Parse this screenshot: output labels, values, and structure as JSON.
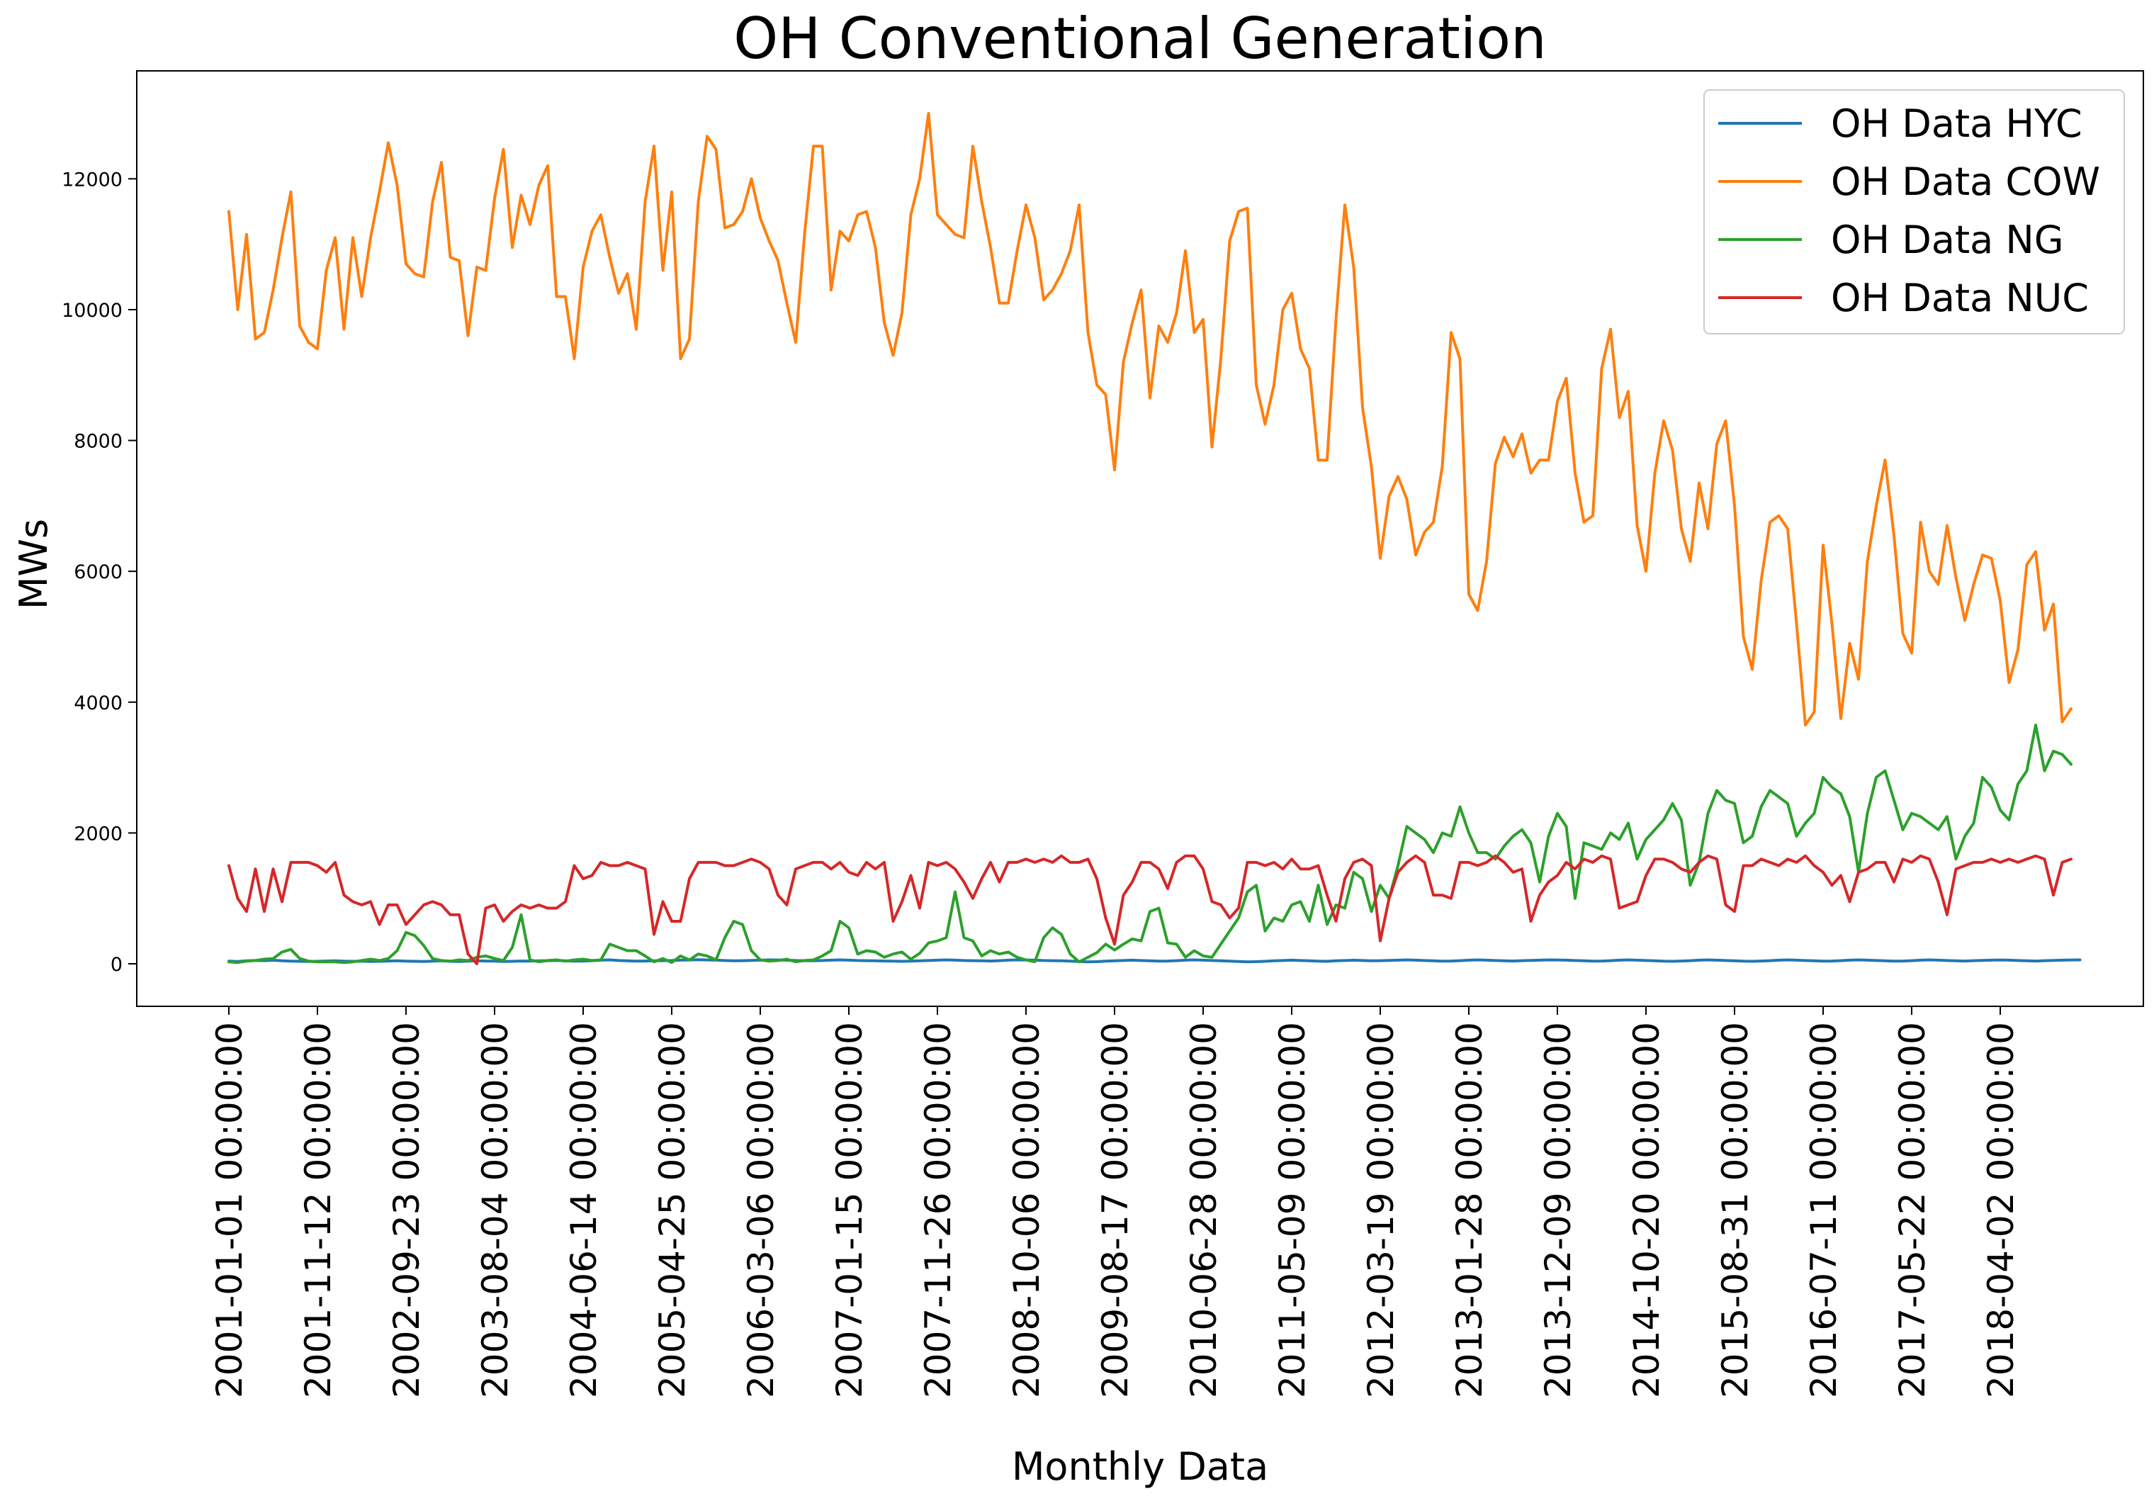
{
  "chart_data": {
    "type": "line",
    "title": "OH Conventional Generation",
    "xlabel": "Monthly Data",
    "ylabel": "MWs",
    "x_start": "2001-01",
    "x_interval": "monthly",
    "x_count": 210,
    "x_tick_labels": [
      "2001-01-01 00:00:00",
      "2001-11-12 00:00:00",
      "2002-09-23 00:00:00",
      "2003-08-04 00:00:00",
      "2004-06-14 00:00:00",
      "2005-04-25 00:00:00",
      "2006-03-06 00:00:00",
      "2007-01-15 00:00:00",
      "2007-11-26 00:00:00",
      "2008-10-06 00:00:00",
      "2009-08-17 00:00:00",
      "2010-06-28 00:00:00",
      "2011-05-09 00:00:00",
      "2012-03-19 00:00:00",
      "2013-01-28 00:00:00",
      "2013-12-09 00:00:00",
      "2014-10-20 00:00:00",
      "2015-08-31 00:00:00",
      "2016-07-11 00:00:00",
      "2017-05-22 00:00:00",
      "2018-04-02 00:00:00"
    ],
    "yticks": [
      0,
      2000,
      4000,
      6000,
      8000,
      10000,
      12000
    ],
    "ylim": [
      -650,
      13650
    ],
    "grid": false,
    "legend_position": "top-right",
    "series": [
      {
        "name": "OH Data HYC",
        "color": "#1f77b4",
        "values": [
          40,
          35,
          45,
          50,
          48,
          55,
          45,
          40,
          38,
          35,
          38,
          42,
          45,
          40,
          38,
          40,
          35,
          38,
          42,
          45,
          40,
          38,
          35,
          40,
          45,
          38,
          35,
          40,
          45,
          42,
          40,
          35,
          38,
          42,
          40,
          45,
          48,
          50,
          45,
          40,
          42,
          48,
          55,
          60,
          50,
          45,
          40,
          42,
          45,
          48,
          50,
          55,
          58,
          62,
          58,
          55,
          50,
          45,
          48,
          52,
          55,
          60,
          58,
          55,
          50,
          48,
          45,
          50,
          55,
          60,
          55,
          50,
          48,
          45,
          42,
          40,
          38,
          40,
          45,
          50,
          55,
          60,
          55,
          50,
          48,
          45,
          42,
          48,
          55,
          60,
          58,
          55,
          50,
          48,
          45,
          40,
          35,
          30,
          32,
          40,
          45,
          50,
          55,
          50,
          45,
          40,
          42,
          48,
          55,
          60,
          55,
          50,
          45,
          40,
          35,
          30,
          32,
          38,
          45,
          50,
          55,
          50,
          45,
          40,
          38,
          45,
          50,
          55,
          50,
          45,
          48,
          52,
          55,
          60,
          55,
          50,
          45,
          40,
          42,
          48,
          55,
          60,
          55,
          50,
          45,
          42,
          48,
          52,
          55,
          60,
          58,
          55,
          50,
          45,
          40,
          42,
          48,
          55,
          60,
          55,
          50,
          45,
          40,
          38,
          42,
          48,
          55,
          60,
          55,
          50,
          45,
          40,
          38,
          42,
          48,
          55,
          60,
          55,
          50,
          45,
          40,
          42,
          48,
          55,
          60,
          55,
          50,
          45,
          40,
          42,
          48,
          55,
          60,
          55,
          50,
          45,
          42,
          48,
          52,
          55,
          58,
          55,
          50,
          45,
          42,
          48,
          52,
          55,
          58,
          60
        ]
      },
      {
        "name": "OH Data COW",
        "color": "#ff7f0e",
        "values": [
          11500,
          10000,
          11150,
          9550,
          9650,
          10300,
          11100,
          11800,
          9750,
          9500,
          9400,
          10600,
          11100,
          9700,
          11100,
          10200,
          11100,
          11800,
          12550,
          11900,
          10700,
          10550,
          10500,
          11650,
          12250,
          10800,
          10750,
          9600,
          10650,
          10600,
          11700,
          12450,
          10950,
          11750,
          11300,
          11900,
          12200,
          10200,
          10200,
          9250,
          10650,
          11200,
          11450,
          10800,
          10250,
          10550,
          9700,
          11650,
          12500,
          10600,
          11800,
          9250,
          9550,
          11650,
          12650,
          12450,
          11250,
          11300,
          11500,
          12000,
          11400,
          11050,
          10750,
          10100,
          9500,
          11150,
          12500,
          12500,
          10300,
          11200,
          11050,
          11450,
          11500,
          10950,
          9800,
          9300,
          9950,
          11450,
          12000,
          13000,
          11450,
          11300,
          11150,
          11100,
          12500,
          11650,
          10950,
          10100,
          10100,
          10900,
          11600,
          11100,
          10150,
          10300,
          10550,
          10900,
          11600,
          9650,
          8850,
          8700,
          7550,
          9200,
          9800,
          10300,
          8650,
          9750,
          9500,
          9950,
          10900,
          9650,
          9850,
          7900,
          9250,
          11050,
          11500,
          11550,
          8850,
          8250,
          8850,
          10000,
          10250,
          9400,
          9100,
          7700,
          7700,
          9850,
          11600,
          10650,
          8500,
          7600,
          6200,
          7150,
          7450,
          7100,
          6250,
          6600,
          6750,
          7600,
          9650,
          9250,
          5650,
          5400,
          6150,
          7650,
          8050,
          7750,
          8100,
          7500,
          7700,
          7700,
          8600,
          8950,
          7500,
          6750,
          6850,
          9100,
          9700,
          8350,
          8750,
          6700,
          6000,
          7500,
          8300,
          7850,
          6650,
          6150,
          7350,
          6650,
          7950,
          8300,
          7000,
          5000,
          4500,
          5850,
          6750,
          6850,
          6650,
          5200,
          3650,
          3850,
          6400,
          5200,
          3750,
          4900,
          4350,
          6150,
          7000,
          7700,
          6550,
          5050,
          4750,
          6750,
          6000,
          5800,
          6700,
          5900,
          5250,
          5800,
          6250,
          6200,
          5550,
          4300,
          4800,
          6100,
          6300,
          5100,
          5500,
          3700,
          3900
        ]
      },
      {
        "name": "OH Data NG",
        "color": "#2ca02c",
        "values": [
          30,
          20,
          40,
          50,
          70,
          80,
          180,
          220,
          80,
          40,
          30,
          30,
          30,
          20,
          30,
          50,
          70,
          50,
          80,
          200,
          480,
          430,
          280,
          80,
          50,
          40,
          60,
          50,
          100,
          120,
          80,
          50,
          250,
          750,
          60,
          30,
          50,
          60,
          40,
          60,
          70,
          50,
          60,
          300,
          250,
          200,
          200,
          120,
          30,
          80,
          20,
          120,
          60,
          150,
          120,
          60,
          400,
          650,
          600,
          200,
          60,
          40,
          50,
          70,
          30,
          50,
          60,
          120,
          200,
          650,
          550,
          150,
          200,
          180,
          100,
          150,
          180,
          70,
          160,
          320,
          350,
          400,
          1100,
          400,
          350,
          120,
          200,
          150,
          180,
          100,
          60,
          30,
          400,
          550,
          450,
          150,
          30,
          100,
          170,
          300,
          210,
          300,
          380,
          350,
          800,
          850,
          320,
          300,
          100,
          200,
          120,
          100,
          300,
          500,
          700,
          1100,
          1200,
          500,
          700,
          650,
          900,
          950,
          650,
          1200,
          600,
          900,
          850,
          1400,
          1300,
          800,
          1200,
          1000,
          1500,
          2100,
          2000,
          1900,
          1700,
          2000,
          1950,
          2400,
          2000,
          1700,
          1700,
          1600,
          1800,
          1950,
          2050,
          1850,
          1250,
          1950,
          2300,
          2100,
          1000,
          1850,
          1800,
          1750,
          2000,
          1900,
          2150,
          1600,
          1900,
          2050,
          2200,
          2450,
          2200,
          1200,
          1550,
          2300,
          2650,
          2500,
          2450,
          1850,
          1950,
          2400,
          2650,
          2550,
          2450,
          1950,
          2150,
          2300,
          2850,
          2700,
          2600,
          2250,
          1400,
          2300,
          2850,
          2950,
          2500,
          2050,
          2300,
          2250,
          2150,
          2050,
          2250,
          1600,
          1950,
          2150,
          2850,
          2700,
          2350,
          2200,
          2750,
          2950,
          3650,
          2950,
          3250,
          3200,
          3050
        ]
      },
      {
        "name": "OH Data NUC",
        "color": "#d62728",
        "values": [
          1500,
          1000,
          800,
          1450,
          800,
          1450,
          950,
          1550,
          1550,
          1550,
          1500,
          1400,
          1550,
          1050,
          950,
          900,
          950,
          600,
          900,
          900,
          600,
          750,
          900,
          950,
          900,
          750,
          750,
          150,
          0,
          850,
          900,
          650,
          800,
          900,
          850,
          900,
          850,
          850,
          950,
          1500,
          1300,
          1350,
          1550,
          1500,
          1500,
          1550,
          1500,
          1450,
          450,
          950,
          650,
          650,
          1300,
          1550,
          1550,
          1550,
          1500,
          1500,
          1550,
          1600,
          1550,
          1450,
          1050,
          900,
          1450,
          1500,
          1550,
          1550,
          1450,
          1550,
          1400,
          1350,
          1550,
          1450,
          1550,
          650,
          950,
          1350,
          850,
          1550,
          1500,
          1550,
          1450,
          1250,
          1000,
          1300,
          1550,
          1250,
          1550,
          1550,
          1600,
          1550,
          1600,
          1550,
          1650,
          1550,
          1550,
          1600,
          1300,
          700,
          300,
          1050,
          1250,
          1550,
          1550,
          1450,
          1150,
          1550,
          1650,
          1650,
          1450,
          950,
          900,
          700,
          850,
          1550,
          1550,
          1500,
          1550,
          1450,
          1600,
          1450,
          1450,
          1500,
          1050,
          650,
          1300,
          1550,
          1600,
          1500,
          350,
          1000,
          1400,
          1550,
          1650,
          1550,
          1050,
          1050,
          1000,
          1550,
          1550,
          1500,
          1550,
          1650,
          1550,
          1400,
          1450,
          650,
          1050,
          1250,
          1350,
          1550,
          1450,
          1600,
          1550,
          1650,
          1600,
          850,
          900,
          950,
          1350,
          1600,
          1600,
          1550,
          1450,
          1400,
          1550,
          1650,
          1600,
          900,
          800,
          1500,
          1500,
          1600,
          1550,
          1500,
          1600,
          1550,
          1650,
          1500,
          1400,
          1200,
          1350,
          950,
          1400,
          1450,
          1550,
          1550,
          1250,
          1600,
          1550,
          1650,
          1600,
          1250,
          750,
          1450,
          1500,
          1550,
          1550,
          1600,
          1550,
          1600,
          1550,
          1600,
          1650,
          1600,
          1050,
          1550,
          1600
        ]
      }
    ]
  }
}
